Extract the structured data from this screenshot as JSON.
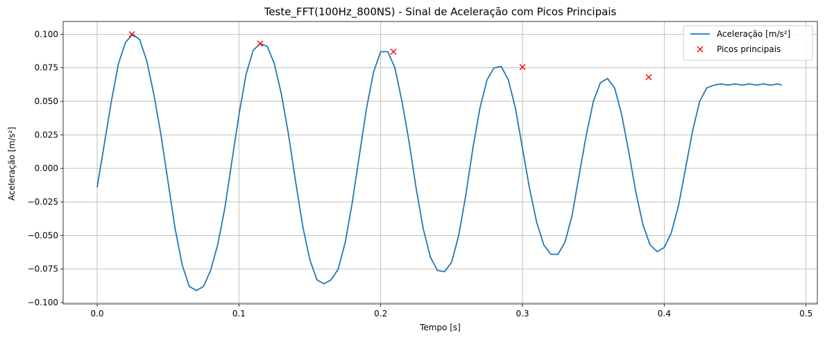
{
  "chart_data": {
    "type": "line",
    "title": "Teste_FFT(100Hz_800NS) - Sinal de Aceleração com Picos Principais",
    "xlabel": "Tempo [s]",
    "ylabel": "Aceleração [m/s²]",
    "xlim": [
      -0.024,
      0.508
    ],
    "ylim": [
      -0.101,
      0.1095
    ],
    "xticks": [
      0.0,
      0.1,
      0.2,
      0.3,
      0.4,
      0.5
    ],
    "xtick_labels": [
      "0.0",
      "0.1",
      "0.2",
      "0.3",
      "0.4",
      "0.5"
    ],
    "yticks": [
      -0.1,
      -0.075,
      -0.05,
      -0.025,
      0.0,
      0.025,
      0.05,
      0.075,
      0.1
    ],
    "ytick_labels": [
      "−0.100",
      "−0.075",
      "−0.050",
      "−0.025",
      "0.000",
      "0.025",
      "0.050",
      "0.075",
      "0.100"
    ],
    "grid": true,
    "legend_position": "top-right",
    "series": [
      {
        "name": "Aceleração [m/s²]",
        "kind": "line",
        "color": "#1f77b4",
        "x": [
          0.0,
          0.005,
          0.01,
          0.015,
          0.02,
          0.025,
          0.03,
          0.035,
          0.04,
          0.045,
          0.05,
          0.055,
          0.06,
          0.065,
          0.07,
          0.075,
          0.08,
          0.085,
          0.09,
          0.095,
          0.1,
          0.105,
          0.11,
          0.115,
          0.12,
          0.125,
          0.13,
          0.135,
          0.14,
          0.145,
          0.15,
          0.155,
          0.16,
          0.165,
          0.17,
          0.175,
          0.18,
          0.185,
          0.19,
          0.195,
          0.2,
          0.205,
          0.21,
          0.215,
          0.22,
          0.225,
          0.23,
          0.235,
          0.24,
          0.245,
          0.25,
          0.255,
          0.26,
          0.265,
          0.27,
          0.275,
          0.28,
          0.285,
          0.29,
          0.295,
          0.3,
          0.305,
          0.31,
          0.315,
          0.32,
          0.325,
          0.33,
          0.335,
          0.34,
          0.345,
          0.35,
          0.355,
          0.36,
          0.365,
          0.37,
          0.375,
          0.38,
          0.385,
          0.39,
          0.395,
          0.4,
          0.405,
          0.41,
          0.415,
          0.42,
          0.425,
          0.43,
          0.435,
          0.44,
          0.445,
          0.45,
          0.455,
          0.46,
          0.465,
          0.47,
          0.475,
          0.48,
          0.483
        ],
        "y": [
          -0.014,
          0.018,
          0.05,
          0.078,
          0.094,
          0.1,
          0.096,
          0.08,
          0.055,
          0.025,
          -0.01,
          -0.045,
          -0.072,
          -0.088,
          -0.091,
          -0.088,
          -0.076,
          -0.057,
          -0.03,
          0.005,
          0.04,
          0.07,
          0.088,
          0.093,
          0.091,
          0.078,
          0.055,
          0.025,
          -0.01,
          -0.043,
          -0.068,
          -0.083,
          -0.086,
          -0.083,
          -0.075,
          -0.055,
          -0.025,
          0.01,
          0.045,
          0.072,
          0.087,
          0.087,
          0.075,
          0.05,
          0.02,
          -0.015,
          -0.045,
          -0.066,
          -0.076,
          -0.077,
          -0.07,
          -0.05,
          -0.02,
          0.015,
          0.045,
          0.066,
          0.075,
          0.076,
          0.066,
          0.045,
          0.015,
          -0.015,
          -0.04,
          -0.057,
          -0.064,
          -0.064,
          -0.055,
          -0.035,
          -0.005,
          0.025,
          0.05,
          0.064,
          0.067,
          0.06,
          0.04,
          0.012,
          -0.018,
          -0.042,
          -0.057,
          -0.062,
          -0.059,
          -0.048,
          -0.028,
          0.0,
          0.028,
          0.05,
          0.06,
          0.062,
          0.063,
          0.062,
          0.063,
          0.062,
          0.063,
          0.062,
          0.063,
          0.062,
          0.063,
          0.062
        ]
      },
      {
        "name": "Picos principais",
        "kind": "markers",
        "color": "#ff0000",
        "x": [
          0.0245,
          0.115,
          0.209,
          0.3,
          0.389
        ],
        "y": [
          0.1,
          0.093,
          0.087,
          0.0755,
          0.068
        ]
      }
    ]
  }
}
